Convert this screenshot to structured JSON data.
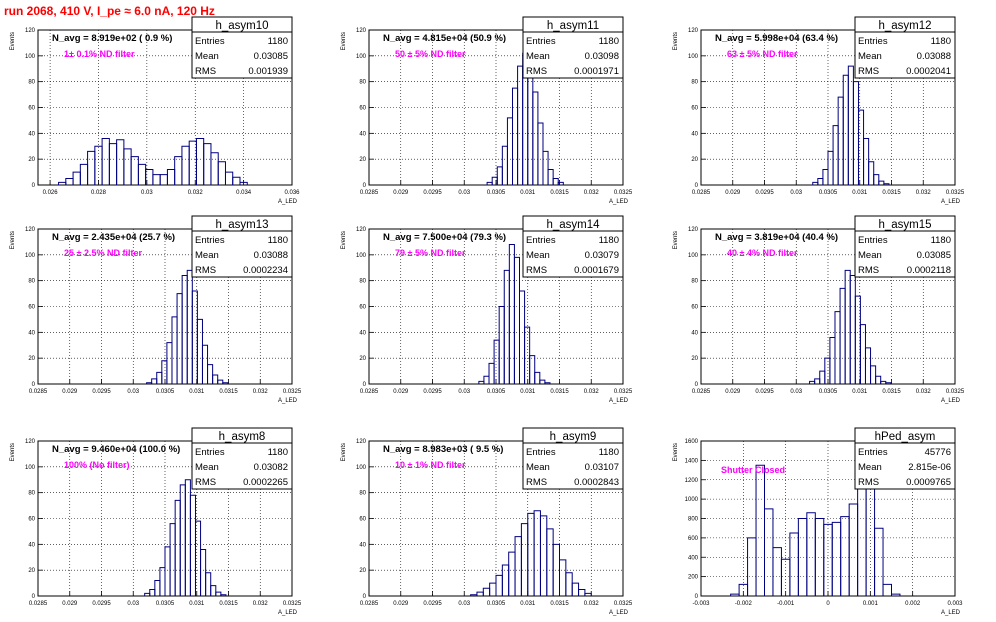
{
  "page": {
    "title": "run 2068,   410 V, I_pe ≈ 6.0 nA, 120 Hz",
    "colors": {
      "title": "#ff0000",
      "hist": "#000080",
      "note": "#ff00ff",
      "text": "#000000"
    }
  },
  "chart_data": [
    {
      "type": "bar",
      "name": "h_asym10",
      "navg": "N_avg = 8.919e+02 ( 0.9 %)",
      "note": "1± 0.1% ND filter",
      "stats": [
        [
          "Entries",
          "1180"
        ],
        [
          "Mean",
          "0.03085"
        ],
        [
          "RMS",
          "0.001939"
        ]
      ],
      "xlabel": "A_LED",
      "ylabel": "Events",
      "xlim": [
        0.0255,
        0.036
      ],
      "ylim": [
        0,
        120
      ],
      "xticks": [
        0.026,
        0.028,
        0.03,
        0.032,
        0.034,
        0.036
      ],
      "xtick_labels": [
        "0.026",
        "0.028",
        "0.03",
        "0.032",
        "0.034",
        "0.036"
      ],
      "yticks": [
        0,
        20,
        40,
        60,
        80,
        100,
        120
      ],
      "ytick_labels": [
        "0",
        "20",
        "40",
        "60",
        "80",
        "100",
        "120"
      ],
      "x": [
        0.0265,
        0.0268,
        0.0271,
        0.0274,
        0.0277,
        0.028,
        0.0283,
        0.0286,
        0.0289,
        0.0292,
        0.0295,
        0.0298,
        0.0301,
        0.0304,
        0.0307,
        0.031,
        0.0313,
        0.0316,
        0.0319,
        0.0322,
        0.0325,
        0.0328,
        0.0331,
        0.0334,
        0.0337,
        0.034
      ],
      "values": [
        2,
        5,
        10,
        16,
        26,
        30,
        36,
        32,
        35,
        28,
        22,
        16,
        12,
        8,
        8,
        12,
        22,
        30,
        34,
        36,
        32,
        25,
        18,
        10,
        6,
        2
      ],
      "binw": 0.0003
    },
    {
      "type": "bar",
      "name": "h_asym11",
      "navg": "N_avg = 4.815e+04 (50.9 %)",
      "note": "50 ± 5% ND filter",
      "stats": [
        [
          "Entries",
          "1180"
        ],
        [
          "Mean",
          "0.03098"
        ],
        [
          "RMS",
          "0.0001971"
        ]
      ],
      "xlabel": "A_LED",
      "ylabel": "Events",
      "xlim": [
        0.0285,
        0.0325
      ],
      "ylim": [
        0,
        120
      ],
      "xticks": [
        0.0285,
        0.029,
        0.0295,
        0.03,
        0.0305,
        0.031,
        0.0315,
        0.032,
        0.0325
      ],
      "xtick_labels": [
        "0.0285",
        "0.029",
        "0.0295",
        "0.03",
        "0.0305",
        "0.031",
        "0.0315",
        "0.032",
        "0.0325"
      ],
      "yticks": [
        0,
        20,
        40,
        60,
        80,
        100,
        120
      ],
      "ytick_labels": [
        "0",
        "20",
        "40",
        "60",
        "80",
        "100",
        "120"
      ],
      "x": [
        0.0304,
        0.03048,
        0.03056,
        0.03064,
        0.03072,
        0.0308,
        0.03088,
        0.03096,
        0.03104,
        0.03112,
        0.0312,
        0.03128,
        0.03136,
        0.03144,
        0.03152
      ],
      "values": [
        2,
        6,
        14,
        30,
        52,
        75,
        92,
        102,
        90,
        72,
        48,
        26,
        12,
        5,
        2
      ],
      "binw": 8e-05
    },
    {
      "type": "bar",
      "name": "h_asym12",
      "navg": "N_avg = 5.998e+04 (63.4 %)",
      "note": "63 ± 5% ND filter",
      "stats": [
        [
          "Entries",
          "1180"
        ],
        [
          "Mean",
          "0.03088"
        ],
        [
          "RMS",
          "0.0002041"
        ]
      ],
      "xlabel": "A_LED",
      "ylabel": "Events",
      "xlim": [
        0.0285,
        0.0325
      ],
      "ylim": [
        0,
        120
      ],
      "xticks": [
        0.0285,
        0.029,
        0.0295,
        0.03,
        0.0305,
        0.031,
        0.0315,
        0.032,
        0.0325
      ],
      "xtick_labels": [
        "0.0285",
        "0.029",
        "0.0295",
        "0.03",
        "0.0305",
        "0.031",
        "0.0315",
        "0.032",
        "0.0325"
      ],
      "yticks": [
        0,
        20,
        40,
        60,
        80,
        100,
        120
      ],
      "ytick_labels": [
        "0",
        "20",
        "40",
        "60",
        "80",
        "100",
        "120"
      ],
      "x": [
        0.0303,
        0.03038,
        0.03046,
        0.03054,
        0.03062,
        0.0307,
        0.03078,
        0.03086,
        0.03094,
        0.03102,
        0.0311,
        0.03118,
        0.03126,
        0.03134,
        0.03142
      ],
      "values": [
        2,
        5,
        12,
        26,
        46,
        68,
        85,
        92,
        80,
        58,
        36,
        18,
        8,
        3,
        1
      ],
      "binw": 8e-05
    },
    {
      "type": "bar",
      "name": "h_asym13",
      "navg": "N_avg = 2.435e+04 (25.7 %)",
      "note": "25 ± 2.5% ND filter",
      "stats": [
        [
          "Entries",
          "1180"
        ],
        [
          "Mean",
          "0.03088"
        ],
        [
          "RMS",
          "0.0002234"
        ]
      ],
      "xlabel": "A_LED",
      "ylabel": "Events",
      "xlim": [
        0.0285,
        0.0325
      ],
      "ylim": [
        0,
        120
      ],
      "xticks": [
        0.0285,
        0.029,
        0.0295,
        0.03,
        0.0305,
        0.031,
        0.0315,
        0.032,
        0.0325
      ],
      "xtick_labels": [
        "0.0285",
        "0.029",
        "0.0295",
        "0.03",
        "0.0305",
        "0.031",
        "0.0315",
        "0.032",
        "0.0325"
      ],
      "yticks": [
        0,
        20,
        40,
        60,
        80,
        100,
        120
      ],
      "ytick_labels": [
        "0",
        "20",
        "40",
        "60",
        "80",
        "100",
        "120"
      ],
      "x": [
        0.03025,
        0.03033,
        0.03041,
        0.03049,
        0.03057,
        0.03065,
        0.03073,
        0.03081,
        0.03089,
        0.03097,
        0.03105,
        0.03113,
        0.03121,
        0.03129,
        0.03137,
        0.03145
      ],
      "values": [
        1,
        4,
        9,
        18,
        32,
        52,
        70,
        84,
        88,
        72,
        50,
        30,
        15,
        7,
        3,
        1
      ],
      "binw": 8e-05
    },
    {
      "type": "bar",
      "name": "h_asym14",
      "navg": "N_avg = 7.500e+04 (79.3 %)",
      "note": "79 ± 5% ND filter",
      "stats": [
        [
          "Entries",
          "1180"
        ],
        [
          "Mean",
          "0.03079"
        ],
        [
          "RMS",
          "0.0001679"
        ]
      ],
      "xlabel": "A_LED",
      "ylabel": "Events",
      "xlim": [
        0.0285,
        0.0325
      ],
      "ylim": [
        0,
        120
      ],
      "xticks": [
        0.0285,
        0.029,
        0.0295,
        0.03,
        0.0305,
        0.031,
        0.0315,
        0.032,
        0.0325
      ],
      "xtick_labels": [
        "0.0285",
        "0.029",
        "0.0295",
        "0.03",
        "0.0305",
        "0.031",
        "0.0315",
        "0.032",
        "0.0325"
      ],
      "yticks": [
        0,
        20,
        40,
        60,
        80,
        100,
        120
      ],
      "ytick_labels": [
        "0",
        "20",
        "40",
        "60",
        "80",
        "100",
        "120"
      ],
      "x": [
        0.03027,
        0.03035,
        0.03043,
        0.03051,
        0.03059,
        0.03067,
        0.03075,
        0.03083,
        0.03091,
        0.03099,
        0.03107,
        0.03115,
        0.03123,
        0.03131
      ],
      "values": [
        2,
        6,
        16,
        34,
        60,
        88,
        108,
        98,
        72,
        44,
        22,
        9,
        3,
        1
      ],
      "binw": 8e-05
    },
    {
      "type": "bar",
      "name": "h_asym15",
      "navg": "N_avg = 3.819e+04 (40.4 %)",
      "note": "40 ± 4% ND filter",
      "stats": [
        [
          "Entries",
          "1180"
        ],
        [
          "Mean",
          "0.03085"
        ],
        [
          "RMS",
          "0.0002118"
        ]
      ],
      "xlabel": "A_LED",
      "ylabel": "Events",
      "xlim": [
        0.0285,
        0.0325
      ],
      "ylim": [
        0,
        120
      ],
      "xticks": [
        0.0285,
        0.029,
        0.0295,
        0.03,
        0.0305,
        0.031,
        0.0315,
        0.032,
        0.0325
      ],
      "xtick_labels": [
        "0.0285",
        "0.029",
        "0.0295",
        "0.03",
        "0.0305",
        "0.031",
        "0.0315",
        "0.032",
        "0.0325"
      ],
      "yticks": [
        0,
        20,
        40,
        60,
        80,
        100,
        120
      ],
      "ytick_labels": [
        "0",
        "20",
        "40",
        "60",
        "80",
        "100",
        "120"
      ],
      "x": [
        0.03025,
        0.03033,
        0.03041,
        0.03049,
        0.03057,
        0.03065,
        0.03073,
        0.03081,
        0.03089,
        0.03097,
        0.03105,
        0.03113,
        0.03121,
        0.03129,
        0.03137,
        0.03145
      ],
      "values": [
        2,
        4,
        10,
        20,
        36,
        56,
        74,
        88,
        84,
        68,
        46,
        28,
        14,
        6,
        2,
        1
      ],
      "binw": 8e-05
    },
    {
      "type": "bar",
      "name": "h_asym8",
      "navg": "N_avg = 9.460e+04 (100.0 %)",
      "note": "100% (No filter)",
      "stats": [
        [
          "Entries",
          "1180"
        ],
        [
          "Mean",
          "0.03082"
        ],
        [
          "RMS",
          "0.0002265"
        ]
      ],
      "xlabel": "A_LED",
      "ylabel": "Events",
      "xlim": [
        0.0285,
        0.0325
      ],
      "ylim": [
        0,
        120
      ],
      "xticks": [
        0.0285,
        0.029,
        0.0295,
        0.03,
        0.0305,
        0.031,
        0.0315,
        0.032,
        0.0325
      ],
      "xtick_labels": [
        "0.0285",
        "0.029",
        "0.0295",
        "0.03",
        "0.0305",
        "0.031",
        "0.0315",
        "0.032",
        "0.0325"
      ],
      "yticks": [
        0,
        20,
        40,
        60,
        80,
        100,
        120
      ],
      "ytick_labels": [
        "0",
        "20",
        "40",
        "60",
        "80",
        "100",
        "120"
      ],
      "x": [
        0.03022,
        0.0303,
        0.03038,
        0.03046,
        0.03054,
        0.03062,
        0.0307,
        0.03078,
        0.03086,
        0.03094,
        0.03102,
        0.0311,
        0.03118,
        0.03126,
        0.03134,
        0.03142
      ],
      "values": [
        2,
        5,
        12,
        22,
        38,
        56,
        74,
        86,
        90,
        78,
        58,
        36,
        18,
        8,
        3,
        1
      ],
      "binw": 8e-05
    },
    {
      "type": "bar",
      "name": "h_asym9",
      "navg": "N_avg = 8.983e+03 ( 9.5 %)",
      "note": "10 ± 1% ND filter",
      "stats": [
        [
          "Entries",
          "1180"
        ],
        [
          "Mean",
          "0.03107"
        ],
        [
          "RMS",
          "0.0002843"
        ]
      ],
      "xlabel": "A_LED",
      "ylabel": "Events",
      "xlim": [
        0.0285,
        0.0325
      ],
      "ylim": [
        0,
        120
      ],
      "xticks": [
        0.0285,
        0.029,
        0.0295,
        0.03,
        0.0305,
        0.031,
        0.0315,
        0.032,
        0.0325
      ],
      "xtick_labels": [
        "0.0285",
        "0.029",
        "0.0295",
        "0.03",
        "0.0305",
        "0.031",
        "0.0315",
        "0.032",
        "0.0325"
      ],
      "yticks": [
        0,
        20,
        40,
        60,
        80,
        100,
        120
      ],
      "ytick_labels": [
        "0",
        "20",
        "40",
        "60",
        "80",
        "100",
        "120"
      ],
      "x": [
        0.03015,
        0.03025,
        0.03035,
        0.03045,
        0.03055,
        0.03065,
        0.03075,
        0.03085,
        0.03095,
        0.03105,
        0.03115,
        0.03125,
        0.03135,
        0.03145,
        0.03155,
        0.03165,
        0.03175,
        0.03185,
        0.03195
      ],
      "values": [
        1,
        3,
        6,
        10,
        16,
        24,
        34,
        46,
        56,
        64,
        66,
        62,
        52,
        40,
        28,
        18,
        10,
        5,
        2
      ],
      "binw": 0.0001
    },
    {
      "type": "bar",
      "name": "hPed_asym",
      "navg": "",
      "note": "Shutter Closed",
      "stats": [
        [
          "Entries",
          "45776"
        ],
        [
          "Mean",
          "2.815e-06"
        ],
        [
          "RMS",
          "0.0009765"
        ]
      ],
      "xlabel": "A_LED",
      "ylabel": "Events",
      "xlim": [
        -0.003,
        0.003
      ],
      "ylim": [
        0,
        1600
      ],
      "xticks": [
        -0.003,
        -0.002,
        -0.001,
        0,
        0.001,
        0.002,
        0.003
      ],
      "xtick_labels": [
        "-0.003",
        "-0.002",
        "-0.001",
        "0",
        "0.001",
        "0.002",
        "0.003"
      ],
      "yticks": [
        0,
        200,
        400,
        600,
        800,
        1000,
        1200,
        1400,
        1600
      ],
      "ytick_labels": [
        "0",
        "200",
        "400",
        "600",
        "800",
        "1000",
        "1200",
        "1400",
        "1600"
      ],
      "x": [
        -0.0022,
        -0.002,
        -0.0018,
        -0.0016,
        -0.0014,
        -0.0012,
        -0.001,
        -0.0008,
        -0.0006,
        -0.0004,
        -0.0002,
        0,
        0.0002,
        0.0004,
        0.0006,
        0.0008,
        0.001,
        0.0012,
        0.0014,
        0.0016
      ],
      "values": [
        20,
        120,
        600,
        1350,
        900,
        500,
        380,
        650,
        800,
        860,
        800,
        740,
        760,
        820,
        950,
        1250,
        1600,
        700,
        120,
        20
      ],
      "binw": 0.0002
    }
  ]
}
